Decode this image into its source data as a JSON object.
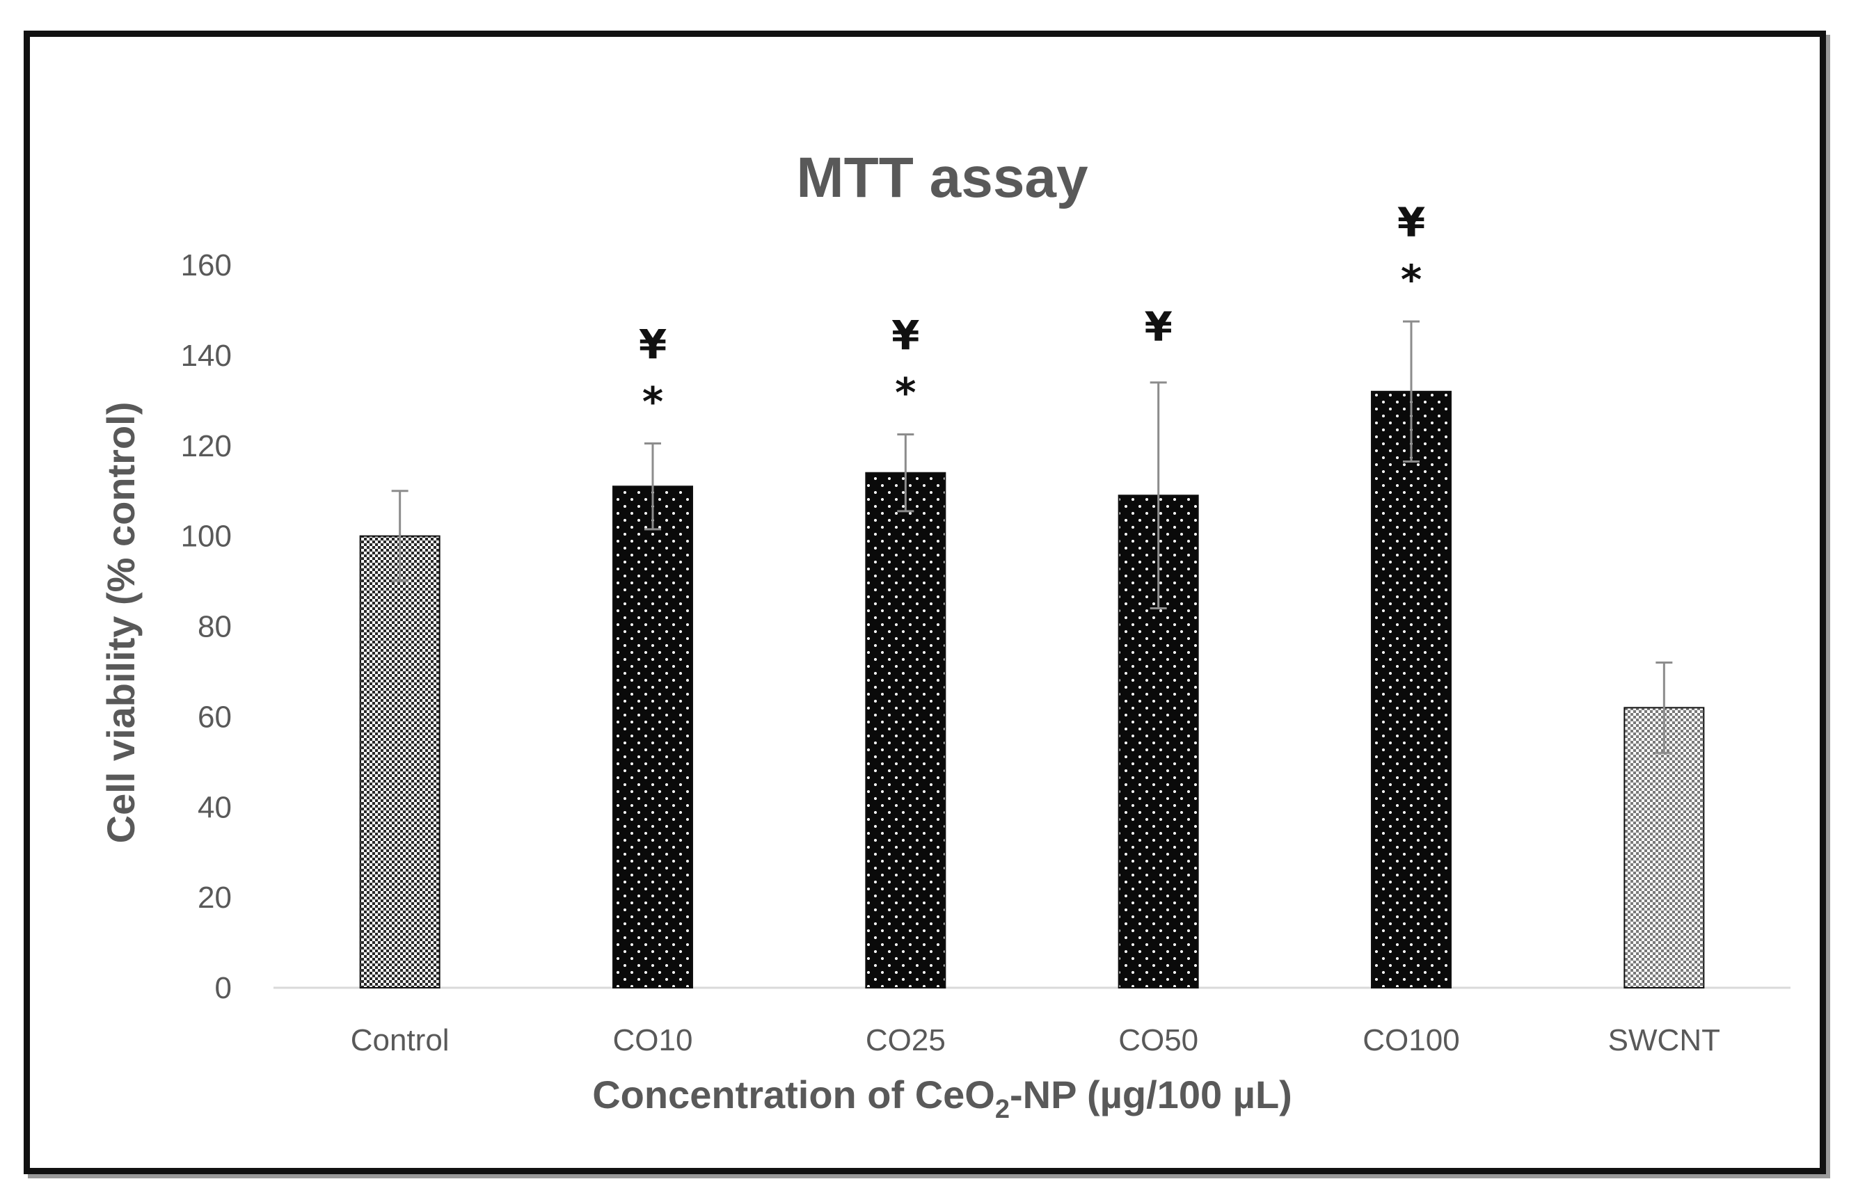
{
  "chart_data": {
    "type": "bar",
    "title": "MTT assay",
    "xlabel_main": "Concentration of CeO",
    "xlabel_sub": "2",
    "xlabel_tail": "-NP (µg/100 µL)",
    "ylabel": "Cell viability (% control)",
    "ylim": [
      0,
      160
    ],
    "yticks": [
      "0",
      "20",
      "40",
      "60",
      "80",
      "100",
      "120",
      "140",
      "160"
    ],
    "categories": [
      "Control",
      "CO10",
      "CO25",
      "CO50",
      "CO100",
      "SWCNT"
    ],
    "values": [
      100,
      111,
      114,
      109,
      132,
      62
    ],
    "error": [
      10,
      9.5,
      8.5,
      25,
      15.5,
      10
    ],
    "annotations": [
      [],
      [
        "¥",
        "*"
      ],
      [
        "¥",
        "*"
      ],
      [
        "¥"
      ],
      [
        "¥",
        "*"
      ],
      []
    ],
    "patterns": [
      "checker",
      "dots",
      "dots",
      "dots",
      "dots",
      "checker-light"
    ],
    "grid": false,
    "legend": "none"
  },
  "colors": {
    "bar_dark": "#0a0a0a",
    "bar_checker": "#2a2a2a",
    "bar_checker_light": "#7a7a7a",
    "axis": "#d9d9d9",
    "text": "#595959",
    "error_bar": "#8c8c8c"
  }
}
